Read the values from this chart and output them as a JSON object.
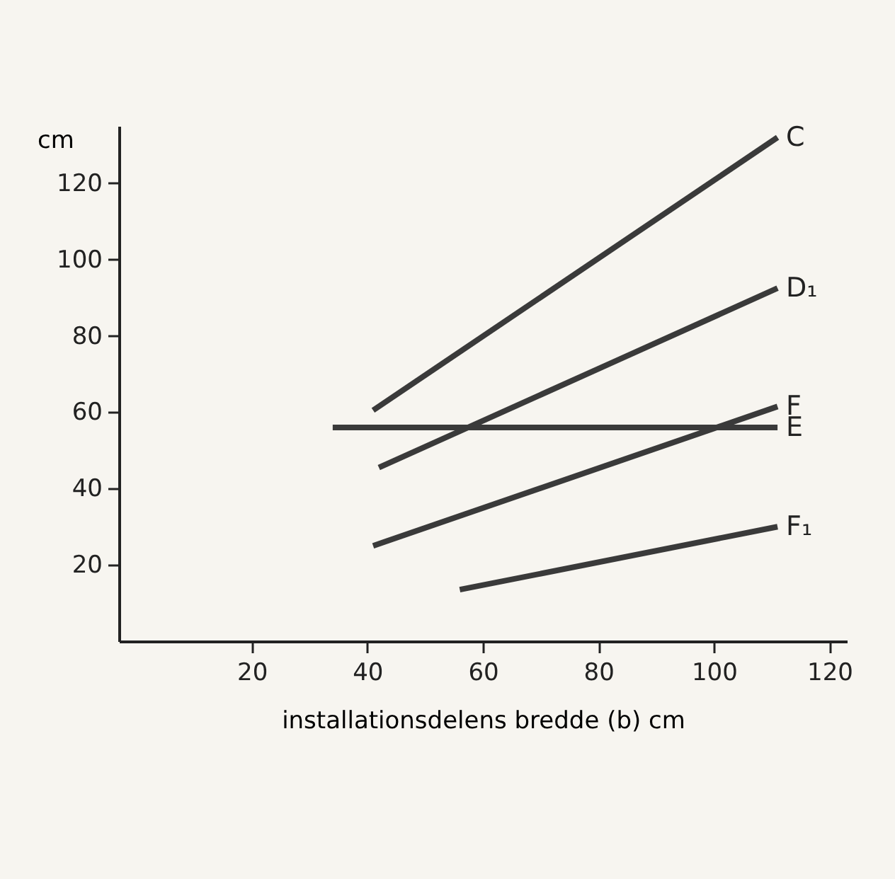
{
  "chart_data": {
    "type": "line",
    "xlabel": "installationsdelens bredde (b) cm",
    "ylabel": "cm",
    "xlim": [
      -3,
      123
    ],
    "xticks": [
      20,
      40,
      60,
      80,
      100,
      120
    ],
    "ylim": [
      0,
      135
    ],
    "yticks": [
      20,
      40,
      60,
      80,
      100,
      120
    ],
    "grid": false,
    "legend": false,
    "marker": "none",
    "line_style": "solid",
    "series": [
      {
        "name": "C",
        "color": "#3a3a3a",
        "x": [
          41,
          111
        ],
        "values": [
          60.5,
          132
        ]
      },
      {
        "name": "D₁",
        "color": "#3a3a3a",
        "x": [
          42,
          111
        ],
        "values": [
          45.5,
          92.5
        ]
      },
      {
        "name": "F",
        "color": "#3a3a3a",
        "x": [
          41,
          111
        ],
        "values": [
          25,
          61.5
        ]
      },
      {
        "name": "E",
        "color": "#3a3a3a",
        "x": [
          34,
          111
        ],
        "values": [
          56,
          56
        ]
      },
      {
        "name": "F₁",
        "color": "#3a3a3a",
        "x": [
          56,
          111
        ],
        "values": [
          13.5,
          30
        ]
      }
    ]
  }
}
